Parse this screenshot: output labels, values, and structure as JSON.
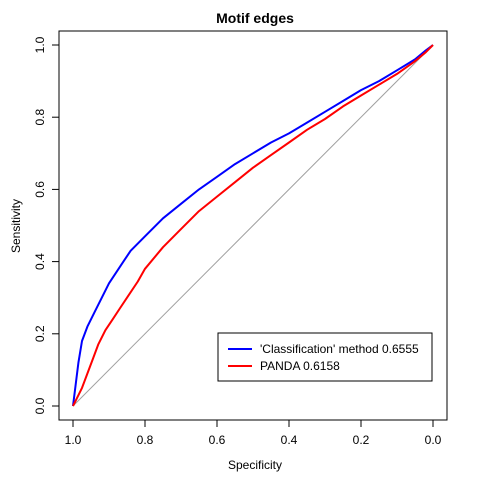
{
  "chart_data": {
    "type": "line",
    "title": "Motif edges",
    "xlabel": "Specificity",
    "ylabel": "Sensitivity",
    "xlim": [
      1.0,
      0.0
    ],
    "ylim": [
      0.0,
      1.0
    ],
    "x_ticks": [
      "1.0",
      "0.8",
      "0.6",
      "0.4",
      "0.2",
      "0.0"
    ],
    "y_ticks": [
      "0.0",
      "0.2",
      "0.4",
      "0.6",
      "0.8",
      "1.0"
    ],
    "legend_position": "bottom-right",
    "reference_line": {
      "from": [
        1.0,
        0.0
      ],
      "to": [
        0.0,
        1.0
      ],
      "color": "#a0a0a0"
    },
    "series": [
      {
        "name": "'Classification' method 0.6555",
        "color": "#0000ff",
        "x": [
          1.0,
          0.995,
          0.985,
          0.975,
          0.96,
          0.94,
          0.92,
          0.9,
          0.88,
          0.86,
          0.84,
          0.8,
          0.75,
          0.7,
          0.65,
          0.6,
          0.55,
          0.5,
          0.45,
          0.4,
          0.35,
          0.3,
          0.25,
          0.2,
          0.15,
          0.1,
          0.05,
          0.02,
          0.0
        ],
        "y": [
          0.0,
          0.04,
          0.12,
          0.18,
          0.22,
          0.26,
          0.3,
          0.34,
          0.37,
          0.4,
          0.43,
          0.47,
          0.52,
          0.56,
          0.6,
          0.635,
          0.67,
          0.7,
          0.73,
          0.755,
          0.785,
          0.815,
          0.845,
          0.875,
          0.9,
          0.93,
          0.96,
          0.985,
          1.0
        ]
      },
      {
        "name": "PANDA 0.6158",
        "color": "#ff0000",
        "x": [
          1.0,
          0.99,
          0.975,
          0.96,
          0.945,
          0.93,
          0.91,
          0.89,
          0.87,
          0.85,
          0.82,
          0.8,
          0.75,
          0.7,
          0.65,
          0.6,
          0.55,
          0.5,
          0.45,
          0.4,
          0.35,
          0.3,
          0.25,
          0.2,
          0.15,
          0.1,
          0.05,
          0.02,
          0.0
        ],
        "y": [
          0.0,
          0.02,
          0.05,
          0.09,
          0.13,
          0.17,
          0.21,
          0.24,
          0.27,
          0.3,
          0.345,
          0.38,
          0.44,
          0.49,
          0.54,
          0.58,
          0.62,
          0.66,
          0.695,
          0.73,
          0.765,
          0.795,
          0.83,
          0.86,
          0.89,
          0.92,
          0.955,
          0.98,
          1.0
        ]
      }
    ]
  }
}
